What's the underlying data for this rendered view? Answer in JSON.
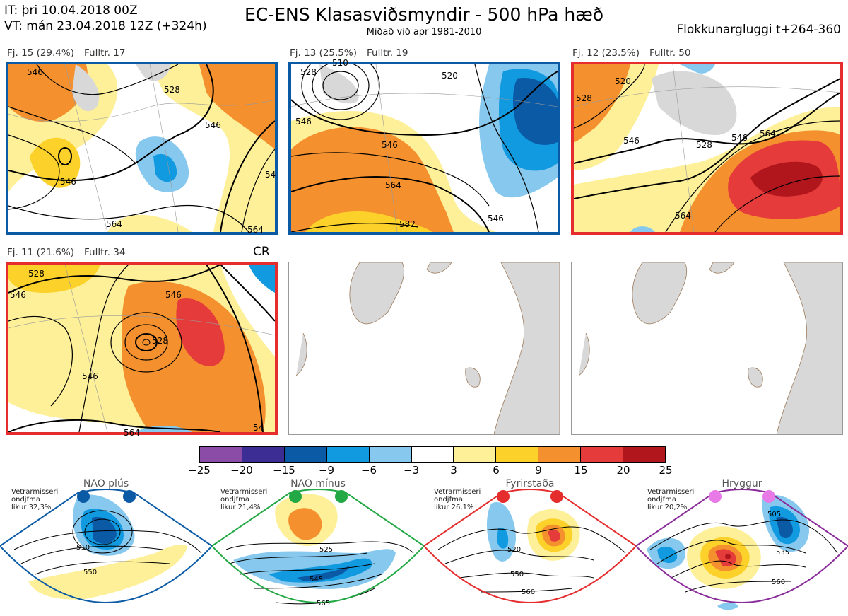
{
  "header": {
    "it": "IT: þri 10.04.2018 00Z",
    "vt": "VT: mán 23.04.2018 12Z  (+324h)",
    "title": "EC-ENS Klasasviðsmyndir - 500 hPa hæð",
    "subtitle": "Miðað við apr 1981-2010",
    "window": "Flokkunargluggi t+264-360"
  },
  "panels": [
    {
      "id": "cluster-1",
      "label": "Fj. 15 (29.4%)",
      "members": "Fulltr. 17",
      "frame": "#0b5aa6"
    },
    {
      "id": "cluster-2",
      "label": "Fj. 13 (25.5%)",
      "members": "Fulltr. 19",
      "frame": "#0b5aa6"
    },
    {
      "id": "cluster-3",
      "label": "Fj. 12 (23.5%)",
      "members": "Fulltr. 50",
      "frame": "#e52d2d"
    },
    {
      "id": "cluster-4",
      "label": "Fj. 11 (21.6%)",
      "members": "Fulltr. 34",
      "frame": "#e52d2d"
    }
  ],
  "cr_label": "CR",
  "contour_labels": {
    "p1": [
      "546",
      "528",
      "546",
      "564",
      "546",
      "564",
      "54"
    ],
    "p2": [
      "528",
      "510",
      "546",
      "564",
      "582",
      "546",
      "520",
      "546"
    ],
    "p3": [
      "528",
      "520",
      "546",
      "528",
      "564",
      "546",
      "564"
    ],
    "p4": [
      "528",
      "546",
      "528",
      "546",
      "546",
      "564",
      "54"
    ]
  },
  "colorbar": {
    "colors": [
      "#8a4ca6",
      "#3b2d94",
      "#0b5aa6",
      "#119ae0",
      "#86c8ee",
      "#ffffff",
      "#fdf098",
      "#fcd12a",
      "#f4902e",
      "#e63b3b",
      "#b0161b"
    ],
    "ticks": [
      "−25",
      "−20",
      "−15",
      "−9",
      "−6",
      "−3",
      "3",
      "6",
      "9",
      "15",
      "20",
      "25"
    ]
  },
  "regimes": [
    {
      "id": "nao-plus",
      "name": "NAO plús",
      "note": [
        "Vetrarmisseri",
        "ondjfma",
        "líkur 32,3%"
      ],
      "color": "#0b5aa6",
      "labels": [
        "510",
        "550"
      ]
    },
    {
      "id": "nao-minus",
      "name": "NAO mínus",
      "note": [
        "Vetrarmisseri",
        "ondjfma",
        "líkur 21,4%"
      ],
      "color": "#22a844",
      "labels": [
        "525",
        "545",
        "565"
      ]
    },
    {
      "id": "blocking",
      "name": "Fyrirstaða",
      "note": [
        "Vetrarmisseri",
        "ondjfma",
        "líkur 26,1%"
      ],
      "color": "#e52d2d",
      "labels": [
        "520",
        "550",
        "560"
      ]
    },
    {
      "id": "ridge",
      "name": "Hryggur",
      "note": [
        "Vetrarmisseri",
        "ondjfma",
        "líkur 20,2%"
      ],
      "color": "#d85fd8",
      "labels": [
        "505",
        "535",
        "560"
      ]
    }
  ]
}
